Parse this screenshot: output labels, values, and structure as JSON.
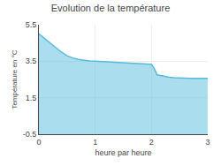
{
  "chart_data": {
    "type": "area",
    "title": "Evolution de la température",
    "xlabel": "heure par heure",
    "ylabel": "Température en °C",
    "color": "#55bbdd",
    "xlim": [
      0,
      3
    ],
    "ylim": [
      -0.5,
      5.5
    ],
    "xticks": [
      0,
      1,
      2,
      3
    ],
    "yticks": [
      -0.5,
      1.5,
      3.5,
      5.5
    ],
    "grid": true,
    "x": [
      0.0,
      0.1,
      0.2,
      0.3,
      0.4,
      0.5,
      0.6,
      0.7,
      0.8,
      0.9,
      1.0,
      1.1,
      1.2,
      1.3,
      1.4,
      1.5,
      1.6,
      1.7,
      1.8,
      1.9,
      2.0,
      2.05,
      2.1,
      2.2,
      2.3,
      2.4,
      2.5,
      2.6,
      2.7,
      2.8,
      2.9,
      3.0
    ],
    "values": [
      5.0,
      4.75,
      4.5,
      4.25,
      4.0,
      3.8,
      3.68,
      3.6,
      3.55,
      3.52,
      3.5,
      3.48,
      3.46,
      3.44,
      3.42,
      3.4,
      3.38,
      3.37,
      3.36,
      3.35,
      3.34,
      3.1,
      2.75,
      2.68,
      2.63,
      2.6,
      2.58,
      2.57,
      2.56,
      2.56,
      2.56,
      2.56
    ]
  }
}
